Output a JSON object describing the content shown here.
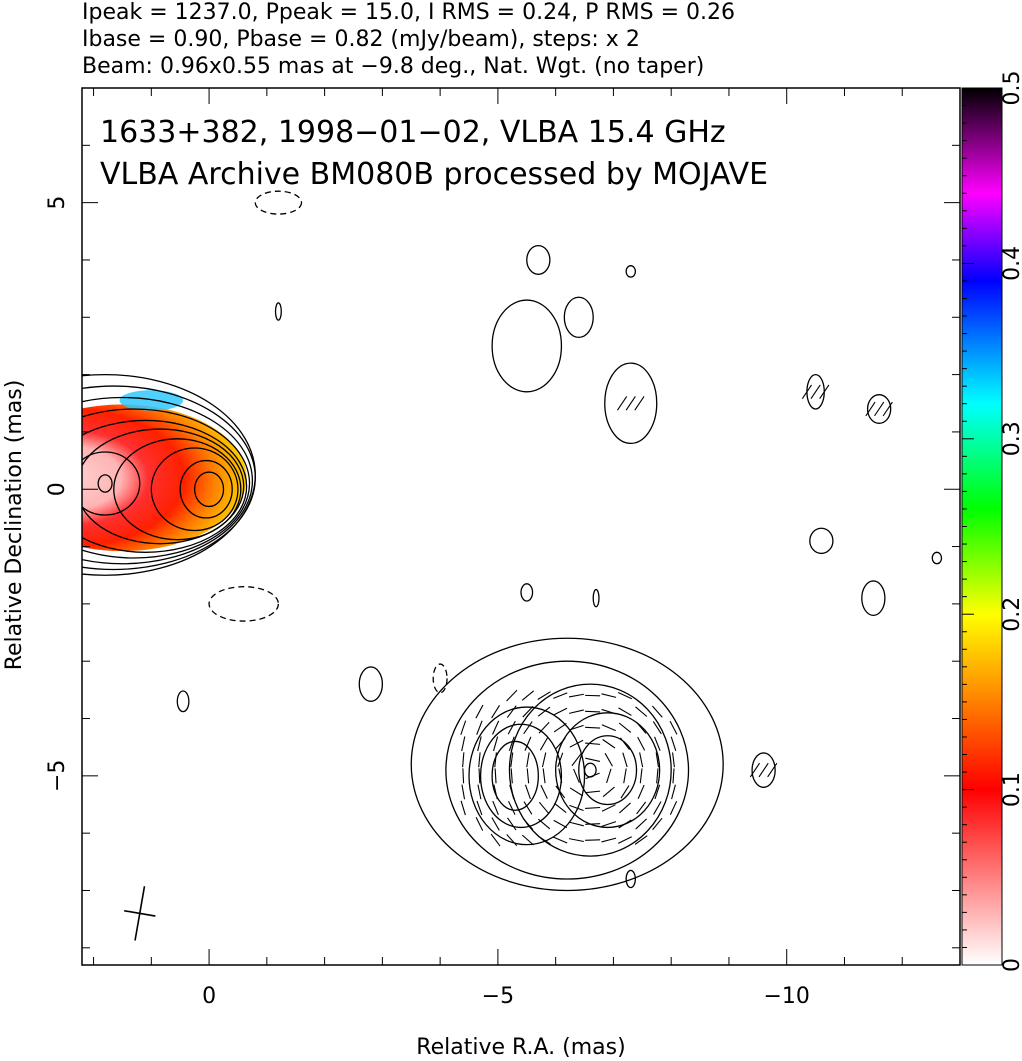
{
  "header": {
    "line1": "Ipeak = 1237.0, Ppeak = 15.0, I RMS = 0.24, P RMS = 0.26",
    "line2": "Ibase = 0.90, Pbase = 0.82 (mJy/beam), steps: x 2",
    "line3": "Beam: 0.96x0.55 mas at −9.8 deg., Nat. Wgt. (no taper)"
  },
  "chart_data": {
    "type": "heatmap",
    "title": "",
    "annotations": [
      "1633+382, 1998−01−02, VLBA 15.4 GHz",
      "VLBA Archive BM080B processed by MOJAVE"
    ],
    "xlabel": "Relative R.A. (mas)",
    "ylabel": "Relative Declination (mas)",
    "xlim": [
      2.2,
      -13.0
    ],
    "ylim": [
      -8.3,
      7.0
    ],
    "x_ticks": [
      {
        "value": 0,
        "label": "0"
      },
      {
        "value": -5,
        "label": "−5"
      },
      {
        "value": -10,
        "label": "−10"
      }
    ],
    "y_ticks": [
      {
        "value": 5,
        "label": "5"
      },
      {
        "value": 0,
        "label": "0"
      },
      {
        "value": -5,
        "label": "−5"
      }
    ],
    "colorbar": {
      "range": [
        0,
        0.5
      ],
      "ticks": [
        {
          "value": 0,
          "label": "0"
        },
        {
          "value": 0.1,
          "label": "0.1"
        },
        {
          "value": 0.2,
          "label": "0.2"
        },
        {
          "value": 0.3,
          "label": "0.3"
        },
        {
          "value": 0.4,
          "label": "0.4"
        },
        {
          "value": 0.5,
          "label": "0.5"
        }
      ],
      "colors": [
        "#ffffff",
        "#ff0000",
        "#ff8000",
        "#ffff00",
        "#00ff00",
        "#00ffff",
        "#0000ff",
        "#ff00ff",
        "#000000"
      ]
    },
    "core": {
      "x": 0.0,
      "y": 0.0
    },
    "contours": [
      {
        "cx": 0.0,
        "cy": 0.0,
        "rx": 0.25,
        "ry": 0.3
      },
      {
        "cx": 0.05,
        "cy": 0.0,
        "rx": 0.45,
        "ry": 0.5
      },
      {
        "cx": 0.25,
        "cy": 0.0,
        "rx": 0.75,
        "ry": 0.72
      },
      {
        "cx": 0.55,
        "cy": 0.0,
        "rx": 1.1,
        "ry": 0.88
      },
      {
        "cx": 0.85,
        "cy": 0.05,
        "rx": 1.45,
        "ry": 1.0
      },
      {
        "cx": 1.1,
        "cy": 0.05,
        "rx": 1.75,
        "ry": 1.15
      },
      {
        "cx": 1.3,
        "cy": 0.1,
        "rx": 2.0,
        "ry": 1.3
      },
      {
        "cx": 1.5,
        "cy": 0.15,
        "rx": 2.25,
        "ry": 1.45
      },
      {
        "cx": 1.65,
        "cy": 0.2,
        "rx": 2.45,
        "ry": 1.6
      },
      {
        "cx": 1.8,
        "cy": 0.25,
        "rx": 2.6,
        "ry": 1.75
      },
      {
        "cx": 1.8,
        "cy": 0.1,
        "rx": 0.12,
        "ry": 0.15
      },
      {
        "cx": 1.8,
        "cy": 0.1,
        "rx": 0.6,
        "ry": 0.55
      },
      {
        "cx": -5.3,
        "cy": -5.0,
        "rx": 0.4,
        "ry": 0.6
      },
      {
        "cx": -5.4,
        "cy": -5.0,
        "rx": 0.7,
        "ry": 0.9
      },
      {
        "cx": -5.5,
        "cy": -5.0,
        "rx": 1.0,
        "ry": 1.2
      },
      {
        "cx": -6.6,
        "cy": -4.9,
        "rx": 0.1,
        "ry": 0.12
      },
      {
        "cx": -6.9,
        "cy": -4.9,
        "rx": 0.5,
        "ry": 0.6
      },
      {
        "cx": -6.9,
        "cy": -4.9,
        "rx": 0.9,
        "ry": 1.0
      },
      {
        "cx": -6.6,
        "cy": -4.9,
        "rx": 1.4,
        "ry": 1.5
      },
      {
        "cx": -6.2,
        "cy": -4.9,
        "rx": 2.1,
        "ry": 1.9
      },
      {
        "cx": -6.2,
        "cy": -4.8,
        "rx": 2.7,
        "ry": 2.2
      },
      {
        "cx": -5.5,
        "cy": 2.5,
        "rx": 0.6,
        "ry": 0.8
      },
      {
        "cx": -6.4,
        "cy": 3.0,
        "rx": 0.25,
        "ry": 0.35
      },
      {
        "cx": -5.7,
        "cy": 4.0,
        "rx": 0.2,
        "ry": 0.25
      },
      {
        "cx": -7.3,
        "cy": 1.5,
        "rx": 0.45,
        "ry": 0.7
      },
      {
        "cx": -7.3,
        "cy": 3.8,
        "rx": 0.08,
        "ry": 0.1
      },
      {
        "cx": -10.5,
        "cy": 1.7,
        "rx": 0.15,
        "ry": 0.3
      },
      {
        "cx": -11.6,
        "cy": 1.4,
        "rx": 0.2,
        "ry": 0.25
      },
      {
        "cx": -10.6,
        "cy": -0.9,
        "rx": 0.2,
        "ry": 0.22
      },
      {
        "cx": -11.5,
        "cy": -1.9,
        "rx": 0.2,
        "ry": 0.3
      },
      {
        "cx": -12.6,
        "cy": -1.2,
        "rx": 0.08,
        "ry": 0.1
      },
      {
        "cx": -9.6,
        "cy": -4.9,
        "rx": 0.2,
        "ry": 0.3
      },
      {
        "cx": -7.3,
        "cy": -6.8,
        "rx": 0.08,
        "ry": 0.15
      },
      {
        "cx": -5.5,
        "cy": -1.8,
        "rx": 0.1,
        "ry": 0.15
      },
      {
        "cx": -6.7,
        "cy": -1.9,
        "rx": 0.05,
        "ry": 0.15
      },
      {
        "cx": 0.45,
        "cy": -3.7,
        "rx": 0.1,
        "ry": 0.18
      },
      {
        "cx": -2.8,
        "cy": -3.4,
        "rx": 0.2,
        "ry": 0.3
      },
      {
        "cx": -1.2,
        "cy": 3.1,
        "rx": 0.05,
        "ry": 0.15
      }
    ],
    "negative_contours": [
      {
        "cx": -1.2,
        "cy": 5.0,
        "rx": 0.4,
        "ry": 0.2
      },
      {
        "cx": -0.6,
        "cy": -2.0,
        "rx": 0.6,
        "ry": 0.3
      },
      {
        "cx": -4.0,
        "cy": -3.3,
        "rx": 0.12,
        "ry": 0.25
      }
    ],
    "beam": {
      "major_mas": 0.96,
      "minor_mas": 0.55,
      "pa_deg": -9.8,
      "x": 1.2,
      "y": -7.4
    }
  }
}
